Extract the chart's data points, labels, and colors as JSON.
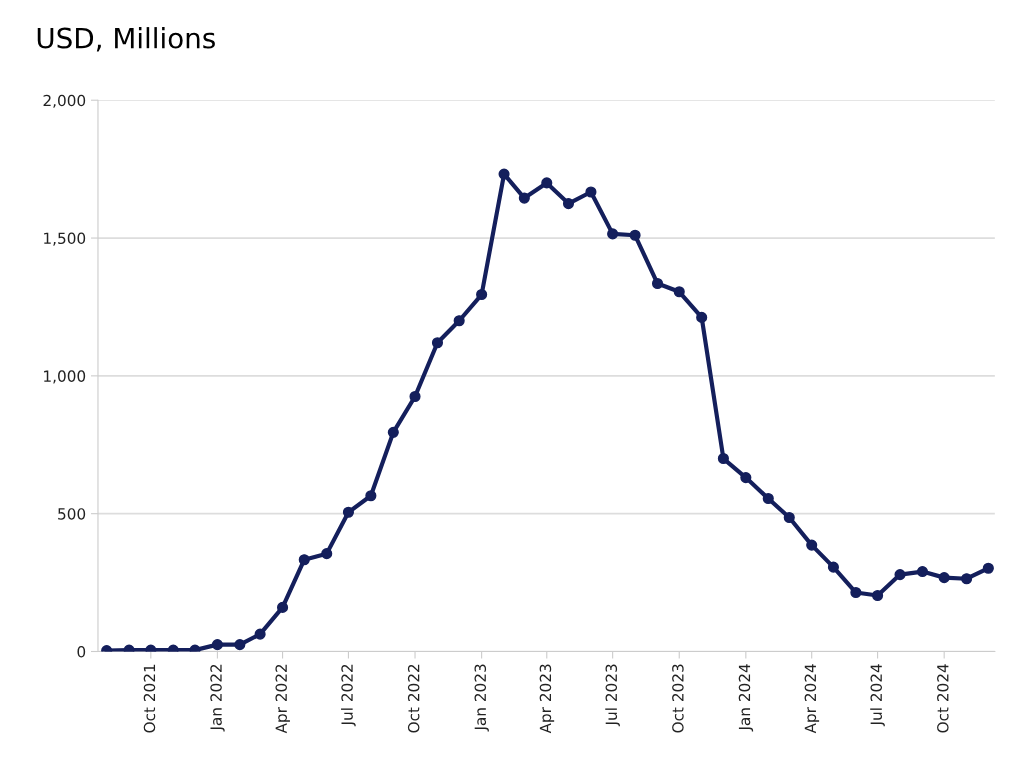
{
  "chart_data": {
    "type": "line",
    "title": "USD, Millions",
    "x": [
      "2021-08",
      "2021-09",
      "2021-10",
      "2021-11",
      "2021-12",
      "2022-01",
      "2022-02",
      "2022-03",
      "2022-04",
      "2022-05",
      "2022-06",
      "2022-07",
      "2022-08",
      "2022-09",
      "2022-10",
      "2022-11",
      "2022-12",
      "2023-01",
      "2023-02",
      "2023-03",
      "2023-04",
      "2023-05",
      "2023-06",
      "2023-07",
      "2023-08",
      "2023-09",
      "2023-10",
      "2023-11",
      "2023-12",
      "2024-01",
      "2024-02",
      "2024-03",
      "2024-04",
      "2024-05",
      "2024-06",
      "2024-07",
      "2024-08",
      "2024-09",
      "2024-10",
      "2024-11",
      "2024-12"
    ],
    "series": [
      {
        "color": "#141f5c",
        "values": [
          3,
          5,
          5,
          5,
          5,
          25,
          25,
          63,
          160,
          333,
          355,
          505,
          565,
          795,
          925,
          1120,
          1200,
          1295,
          1732,
          1645,
          1700,
          1625,
          1667,
          1515,
          1510,
          1335,
          1305,
          1212,
          700,
          631,
          555,
          486,
          386,
          306,
          214,
          203,
          279,
          290,
          268,
          264,
          302
        ]
      }
    ],
    "xlim": [
      "2021-07-20",
      "2024-12-10"
    ],
    "xticks": [
      {
        "value": "2021-10",
        "label": "Oct 2021"
      },
      {
        "value": "2022-01",
        "label": "Jan 2022"
      },
      {
        "value": "2022-04",
        "label": "Apr 2022"
      },
      {
        "value": "2022-07",
        "label": "Jul 2022"
      },
      {
        "value": "2022-10",
        "label": "Oct 2022"
      },
      {
        "value": "2023-01",
        "label": "Jan 2023"
      },
      {
        "value": "2023-04",
        "label": "Apr 2023"
      },
      {
        "value": "2023-07",
        "label": "Jul 2023"
      },
      {
        "value": "2023-10",
        "label": "Oct 2023"
      },
      {
        "value": "2024-01",
        "label": "Jan 2024"
      },
      {
        "value": "2024-04",
        "label": "Apr 2024"
      },
      {
        "value": "2024-07",
        "label": "Jul 2024"
      },
      {
        "value": "2024-10",
        "label": "Oct 2024"
      }
    ],
    "ylim": [
      0,
      2000
    ],
    "yticks": [
      0,
      {
        "value": 500,
        "label": "500"
      },
      {
        "value": 1000,
        "label": "1,000"
      },
      {
        "value": 1500,
        "label": "1,500"
      },
      {
        "value": 2000,
        "label": "2,000"
      }
    ],
    "grid": "y",
    "marker": "circle",
    "line_style": "solid",
    "legend": false
  }
}
